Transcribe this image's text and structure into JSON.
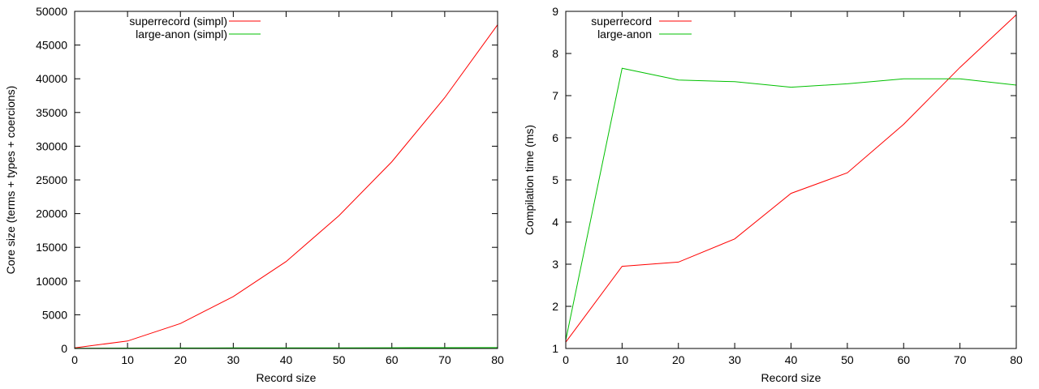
{
  "chart_data": [
    {
      "type": "line",
      "xlabel": "Record size",
      "ylabel": "Core size (terms + types + coercions)",
      "xlim": [
        0,
        80
      ],
      "ylim": [
        0,
        50000
      ],
      "xticks": [
        0,
        10,
        20,
        30,
        40,
        50,
        60,
        70,
        80
      ],
      "yticks": [
        0,
        5000,
        10000,
        15000,
        20000,
        25000,
        30000,
        35000,
        40000,
        45000,
        50000
      ],
      "grid": false,
      "legend": "top-left",
      "series": [
        {
          "name": "superrecord (simpl)",
          "color": "#ff0000",
          "x": [
            0,
            10,
            20,
            30,
            40,
            50,
            60,
            70,
            80
          ],
          "values": [
            100,
            1100,
            3700,
            7700,
            12900,
            19700,
            27700,
            37200,
            48000
          ]
        },
        {
          "name": "large-anon (simpl)",
          "color": "#00c000",
          "x": [
            0,
            10,
            20,
            30,
            40,
            50,
            60,
            70,
            80
          ],
          "values": [
            40,
            60,
            70,
            80,
            90,
            100,
            110,
            120,
            130
          ]
        }
      ]
    },
    {
      "type": "line",
      "xlabel": "Record size",
      "ylabel": "Compilation time (ms)",
      "xlim": [
        0,
        80
      ],
      "ylim": [
        1,
        9
      ],
      "xticks": [
        0,
        10,
        20,
        30,
        40,
        50,
        60,
        70,
        80
      ],
      "yticks": [
        1,
        2,
        3,
        4,
        5,
        6,
        7,
        8,
        9
      ],
      "grid": false,
      "legend": "top-left",
      "series": [
        {
          "name": "superrecord",
          "color": "#ff0000",
          "x": [
            0,
            10,
            20,
            30,
            40,
            50,
            60,
            70,
            80
          ],
          "values": [
            1.15,
            2.95,
            3.05,
            3.6,
            4.68,
            5.17,
            6.32,
            7.67,
            8.92
          ]
        },
        {
          "name": "large-anon",
          "color": "#00c000",
          "x": [
            0,
            10,
            20,
            30,
            40,
            50,
            60,
            70,
            80
          ],
          "values": [
            1.2,
            7.65,
            7.37,
            7.33,
            7.2,
            7.28,
            7.4,
            7.4,
            7.25
          ]
        }
      ]
    }
  ]
}
